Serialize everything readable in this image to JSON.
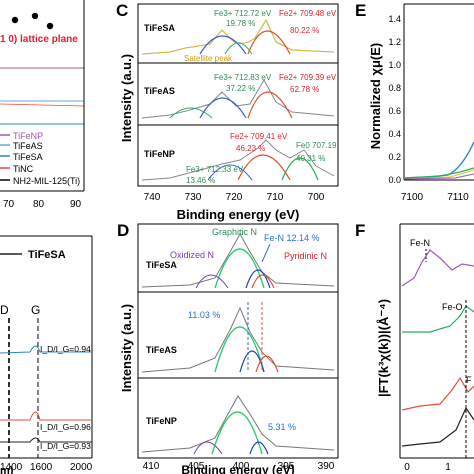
{
  "panel_letters": {
    "c": "C",
    "d": "D",
    "e": "E",
    "f": "F"
  },
  "panel_a_partial": {
    "legend": [
      "TiFeNP",
      "TiFeAS",
      "TiFeSA",
      "TiNC",
      "NH2-MIL-125(Ti)"
    ],
    "annotation": "1 0) lattice plane",
    "x_ticks": [
      "70",
      "80",
      "90"
    ],
    "colors": [
      "#9b59b6",
      "#5dade2",
      "#2e86c1",
      "#e74c3c",
      "#000000"
    ]
  },
  "panel_b_partial": {
    "legend": "TiFeSA",
    "peaks": [
      "D",
      "G"
    ],
    "ratios": [
      "I_D/I_G=0.94",
      "I_D/I_G=0.96",
      "I_D/I_G=0.93"
    ],
    "x_ticks": [
      "1400",
      "1600",
      "2000"
    ],
    "xlabel": "m)"
  },
  "chart_data": [
    {
      "panel": "C",
      "type": "line",
      "xlabel": "Binding energy (eV)",
      "ylabel": "Intensity (a.u.)",
      "x_ticks": [
        "740",
        "730",
        "720",
        "710",
        "700"
      ],
      "xlim": [
        740,
        697
      ],
      "subplots": [
        {
          "sample": "TiFeSA",
          "annotations": [
            "Fe3+ 712.72 eV",
            "19.78 %",
            "Fe2+ 709.48 eV",
            "80.22 %",
            "Satellite peak"
          ]
        },
        {
          "sample": "TiFeAS",
          "annotations": [
            "Fe3+ 712.83 eV",
            "37.22 %",
            "Fe2+ 709.39 eV",
            "62.78 %"
          ]
        },
        {
          "sample": "TiFeNP",
          "annotations": [
            "Fe2+ 709.41 eV",
            "46.23 %",
            "Fe0 707.19",
            "40.31 %",
            "Fe3+ 712.33 eV",
            "13.46 %"
          ]
        }
      ]
    },
    {
      "panel": "D",
      "type": "line",
      "xlabel": "Binding energy (eV)",
      "ylabel": "Intensity (a.u.)",
      "x_ticks": [
        "410",
        "405",
        "400",
        "395",
        "390"
      ],
      "xlim": [
        411,
        388
      ],
      "subplots": [
        {
          "sample": "TiFeSA",
          "annotations": [
            "Graphitic N",
            "Fe-N 12.14 %",
            "Oxidized N",
            "Pyridinic N"
          ]
        },
        {
          "sample": "TiFeAS",
          "annotations": [
            "11.03 %"
          ]
        },
        {
          "sample": "TiFeNP",
          "annotations": [
            "5.31 %"
          ]
        }
      ]
    },
    {
      "panel": "E",
      "type": "line",
      "ylabel": "Normalized χμ(E)",
      "x_ticks": [
        "7100",
        "7110"
      ],
      "y_ticks": [
        "0.0",
        "0.2",
        "0.4",
        "0.6",
        "0.8",
        "1.0",
        "1.2",
        "1.4"
      ]
    },
    {
      "panel": "F",
      "type": "line",
      "ylabel": "|FT(k³χ(k))|(Å⁻⁴)",
      "annotations": [
        "Fe-N",
        "Fe-O",
        "F"
      ],
      "x_ticks": [
        "0",
        "1"
      ]
    }
  ]
}
